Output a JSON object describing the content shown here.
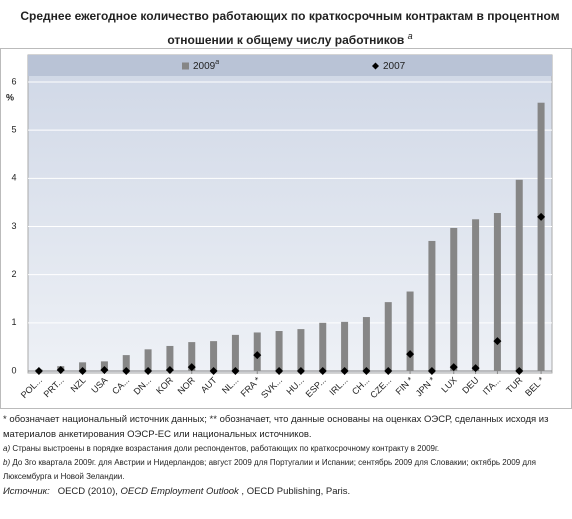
{
  "chart_data": {
    "type": "bar_marker",
    "title": "Среднее ежегодное количество работающих по краткосрочным контрактам  в процентном отношении к общему числу работников",
    "title_superscript": "a",
    "y_label": "%",
    "categories": [
      "POL...",
      "PRT...",
      "NZL",
      "USA",
      "CA...",
      "DN...",
      "KOR",
      "NOR",
      "AUT",
      "NL...",
      "FRA *",
      "SVK...",
      "HU...",
      "ESP...",
      "IRL...",
      "CH...",
      "CZE...",
      "FIN *",
      "JPN *",
      "LUX",
      "DEU",
      "ITA...",
      "TUR",
      "BEL *"
    ],
    "series": [
      {
        "name": "2009",
        "name_superscript": "a",
        "kind": "bar",
        "color": "#868686",
        "values": [
          0.03,
          0.1,
          0.18,
          0.2,
          0.33,
          0.45,
          0.52,
          0.6,
          0.62,
          0.75,
          0.8,
          0.83,
          0.87,
          1.0,
          1.02,
          1.12,
          1.43,
          1.65,
          2.7,
          2.97,
          3.15,
          3.28,
          3.97,
          5.57
        ]
      },
      {
        "name": "2007",
        "kind": "marker",
        "color": "#000000",
        "values": [
          0,
          0.02,
          0,
          0.02,
          0,
          0,
          0.02,
          0.08,
          0,
          0,
          0.33,
          0,
          0,
          0,
          0,
          0,
          0,
          0.35,
          0,
          0.08,
          0.06,
          0.62,
          0,
          3.2
        ]
      }
    ],
    "ylim": [
      0,
      6
    ],
    "yticks": [
      0,
      1,
      2,
      3,
      4,
      5,
      6
    ],
    "grid": true
  },
  "footnotes": {
    "note1": "* обозначает национальный источник данных;   ** обозначает, что данные основаны на оценках ОЭСР, сделанных  исходя из  материалов анкетирования  ОЭСР-ЕС  или  национальных источников.",
    "a_marker": "a)",
    "a_text": "Страны выстроены в порядке возрастания доли респондентов, работающих по краткосрочному контракту в 2009г.",
    "b_marker": "b)",
    "b_text": "До  3го квартала   2009г.  для Австрии и Нидерландов; август 2009 для Португалии и Испании; сентябрь 2009 для Словакии; октябрь 2009  для Люксембурга и Новой Зеландии.",
    "source_label": "Источник:",
    "source_before": "OECD (2010), ",
    "source_italic": "OECD Employment Outlook",
    "source_after": " , OECD Publishing, Paris."
  }
}
